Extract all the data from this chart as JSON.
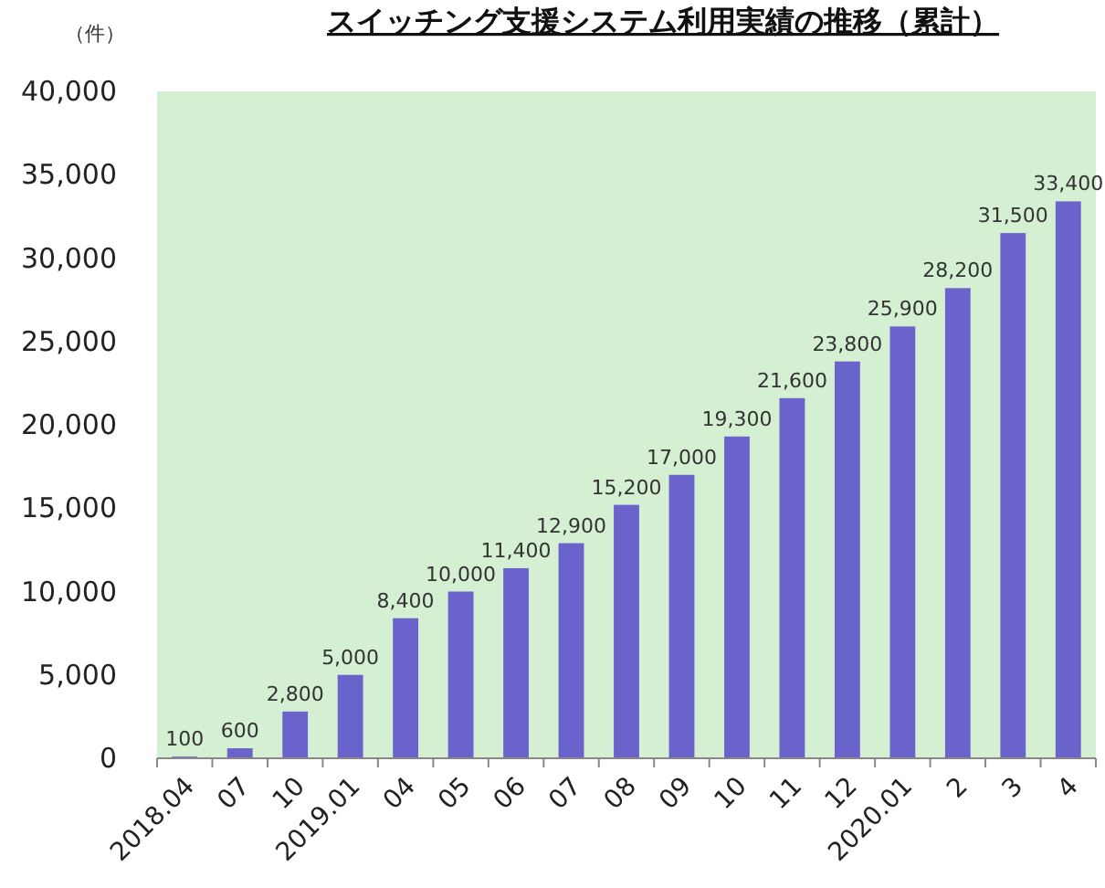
{
  "chart_data": {
    "type": "bar",
    "title": "スイッチング支援システム利用実績の推移（累計）",
    "ylabel": "（件）",
    "categories": [
      "2018.04",
      "07",
      "10",
      "2019.01",
      "04",
      "05",
      "06",
      "07",
      "08",
      "09",
      "10",
      "11",
      "12",
      "2020.01",
      "2",
      "3",
      "4"
    ],
    "values": [
      100,
      600,
      2800,
      5000,
      8400,
      10000,
      11400,
      12900,
      15200,
      17000,
      19300,
      21600,
      23800,
      25900,
      28200,
      31500,
      33400
    ],
    "color": "#6b63cc",
    "ylim": [
      0,
      40000
    ],
    "yticks": [
      {
        "value": 0,
        "label": "0"
      },
      {
        "value": 5000,
        "label": "5,000"
      },
      {
        "value": 10000,
        "label": "10,000"
      },
      {
        "value": 15000,
        "label": "15,000"
      },
      {
        "value": 20000,
        "label": "20,000"
      },
      {
        "value": 25000,
        "label": "25,000"
      },
      {
        "value": 30000,
        "label": "30,000"
      },
      {
        "value": 35000,
        "label": "35,000"
      },
      {
        "value": 40000,
        "label": "40,000"
      }
    ],
    "value_labels": [
      "100",
      "600",
      "2,800",
      "5,000",
      "8,400",
      "10,000",
      "11,400",
      "12,900",
      "15,200",
      "17,000",
      "19,300",
      "21,600",
      "23,800",
      "25,900",
      "28,200",
      "31,500",
      "33,400"
    ],
    "grid": false
  }
}
